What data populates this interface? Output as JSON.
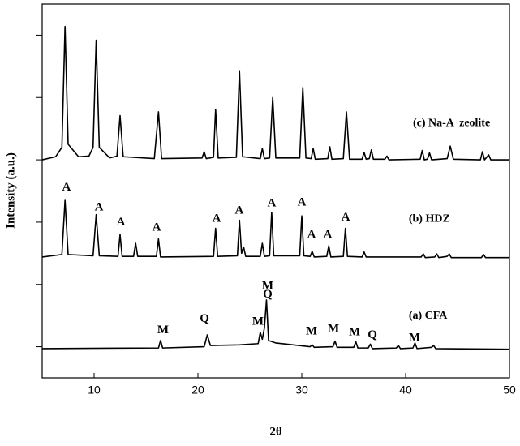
{
  "chart_data": {
    "type": "line",
    "xlabel": "2θ",
    "ylabel": "Intensity (a.u.)",
    "xlim": [
      5,
      50
    ],
    "xticks": [
      10,
      20,
      30,
      40,
      50
    ],
    "ylim": [
      -0.5,
      5.5
    ],
    "yticks": [
      0,
      1,
      2,
      3,
      4,
      5
    ],
    "ytick_labels": false,
    "series": [
      {
        "name": "(c) Na-A  zeolite",
        "color": "#000000",
        "label_at": [
          40.7,
          3.58
        ],
        "x": [
          5,
          6.3,
          6.9,
          7.2,
          7.5,
          8.5,
          9.5,
          9.9,
          10.2,
          10.5,
          11.5,
          12.2,
          12.5,
          12.8,
          15.8,
          16.2,
          16.5,
          20.4,
          20.6,
          20.8,
          21.5,
          21.7,
          21.95,
          23.7,
          24.0,
          24.3,
          26.0,
          26.2,
          26.4,
          26.9,
          27.2,
          27.5,
          29.8,
          30.1,
          30.4,
          30.9,
          31.1,
          31.3,
          32.5,
          32.7,
          32.9,
          34.0,
          34.3,
          34.6,
          35.8,
          36.0,
          36.2,
          36.5,
          36.7,
          36.9,
          38,
          38.2,
          38.4,
          41.4,
          41.6,
          41.8,
          42.1,
          42.3,
          42.5,
          44.0,
          44.3,
          44.6,
          47.2,
          47.4,
          47.6,
          48.0,
          48.2,
          50
        ],
        "values": [
          3.0,
          3.05,
          3.2,
          5.14,
          3.25,
          3.05,
          3.06,
          3.2,
          4.92,
          3.2,
          3.03,
          3.06,
          3.71,
          3.05,
          3.02,
          3.77,
          3.02,
          3.03,
          3.13,
          3.02,
          3.04,
          3.81,
          3.03,
          3.04,
          4.43,
          3.05,
          3.02,
          3.18,
          3.02,
          3.03,
          4.0,
          3.03,
          3.03,
          4.16,
          3.03,
          3.02,
          3.18,
          3.01,
          3.02,
          3.21,
          3.01,
          3.02,
          3.77,
          3.01,
          3.01,
          3.12,
          3.01,
          3.02,
          3.16,
          3.01,
          3.01,
          3.06,
          3.0,
          3.01,
          3.15,
          3.0,
          3.01,
          3.11,
          3.0,
          3.02,
          3.22,
          3.01,
          3.0,
          3.13,
          3.0,
          3.08,
          3.0,
          3.0
        ]
      },
      {
        "name": "(b) HDZ",
        "color": "#000000",
        "label_at": [
          40.3,
          2.05
        ],
        "x": [
          5,
          6.9,
          7.2,
          7.5,
          9.9,
          10.2,
          10.5,
          12.3,
          12.5,
          12.7,
          13.8,
          14.0,
          14.2,
          16.0,
          16.2,
          16.4,
          21.5,
          21.7,
          21.9,
          23.8,
          24.0,
          24.2,
          24.4,
          24.6,
          26.0,
          26.2,
          26.4,
          26.9,
          27.1,
          27.3,
          29.8,
          30.0,
          30.2,
          30.8,
          31.0,
          31.2,
          32.4,
          32.6,
          32.8,
          34.0,
          34.2,
          34.4,
          35.8,
          36.0,
          36.2,
          41.5,
          41.7,
          41.9,
          42.8,
          43.0,
          43.2,
          44,
          44.2,
          44.4,
          47.3,
          47.5,
          47.7,
          50
        ],
        "values": [
          1.44,
          1.48,
          2.35,
          1.48,
          1.46,
          2.12,
          1.46,
          1.45,
          1.8,
          1.45,
          1.45,
          1.66,
          1.45,
          1.45,
          1.73,
          1.44,
          1.45,
          1.9,
          1.45,
          1.46,
          2.03,
          1.5,
          1.6,
          1.45,
          1.45,
          1.66,
          1.45,
          1.46,
          2.16,
          1.46,
          1.46,
          2.1,
          1.46,
          1.45,
          1.53,
          1.44,
          1.45,
          1.62,
          1.44,
          1.45,
          1.9,
          1.45,
          1.44,
          1.52,
          1.44,
          1.44,
          1.49,
          1.43,
          1.44,
          1.49,
          1.43,
          1.45,
          1.49,
          1.43,
          1.43,
          1.48,
          1.43,
          1.43
        ]
      },
      {
        "name": "(a) CFA",
        "color": "#000000",
        "label_at": [
          40.3,
          0.49
        ],
        "x": [
          5,
          16.2,
          16.4,
          16.6,
          20.6,
          20.9,
          21.2,
          24,
          25.8,
          26.0,
          26.2,
          26.4,
          26.6,
          26.8,
          27.5,
          30.8,
          31.0,
          31.2,
          33.0,
          33.2,
          33.4,
          35.0,
          35.2,
          35.4,
          36.4,
          36.6,
          36.8,
          39.1,
          39.3,
          39.5,
          40.7,
          40.9,
          41.1,
          42.5,
          42.7,
          42.9,
          50
        ],
        "values": [
          -0.03,
          -0.02,
          0.1,
          -0.02,
          0.0,
          0.19,
          0.02,
          0.03,
          0.05,
          0.23,
          0.12,
          0.3,
          0.75,
          0.1,
          0.06,
          0.0,
          0.03,
          -0.01,
          0.0,
          0.09,
          -0.01,
          -0.01,
          0.08,
          -0.02,
          -0.02,
          0.04,
          -0.03,
          -0.02,
          0.02,
          -0.03,
          -0.02,
          0.06,
          -0.03,
          -0.01,
          0.02,
          -0.03,
          -0.04
        ]
      }
    ],
    "annotations": [
      {
        "text": "A",
        "x": 7.34,
        "y": 2.55
      },
      {
        "text": "A",
        "x": 10.47,
        "y": 2.23
      },
      {
        "text": "A",
        "x": 12.58,
        "y": 1.99
      },
      {
        "text": "A",
        "x": 16.02,
        "y": 1.91
      },
      {
        "text": "A",
        "x": 21.8,
        "y": 2.05
      },
      {
        "text": "A",
        "x": 23.98,
        "y": 2.18
      },
      {
        "text": "A",
        "x": 27.1,
        "y": 2.3
      },
      {
        "text": "A",
        "x": 30.0,
        "y": 2.31
      },
      {
        "text": "A",
        "x": 30.94,
        "y": 1.79
      },
      {
        "text": "A",
        "x": 32.5,
        "y": 1.79
      },
      {
        "text": "A",
        "x": 34.22,
        "y": 2.07
      },
      {
        "text": "M",
        "x": 16.64,
        "y": 0.26
      },
      {
        "text": "Q",
        "x": 20.63,
        "y": 0.44
      },
      {
        "text": "M",
        "x": 25.78,
        "y": 0.4
      },
      {
        "text": "Q",
        "x": 26.72,
        "y": 0.83
      },
      {
        "text": "M",
        "x": 26.72,
        "y": 0.97
      },
      {
        "text": "M",
        "x": 30.94,
        "y": 0.24
      },
      {
        "text": "M",
        "x": 33.05,
        "y": 0.28
      },
      {
        "text": "M",
        "x": 35.08,
        "y": 0.23
      },
      {
        "text": "Q",
        "x": 36.8,
        "y": 0.18
      },
      {
        "text": "M",
        "x": 40.86,
        "y": 0.14
      }
    ]
  }
}
